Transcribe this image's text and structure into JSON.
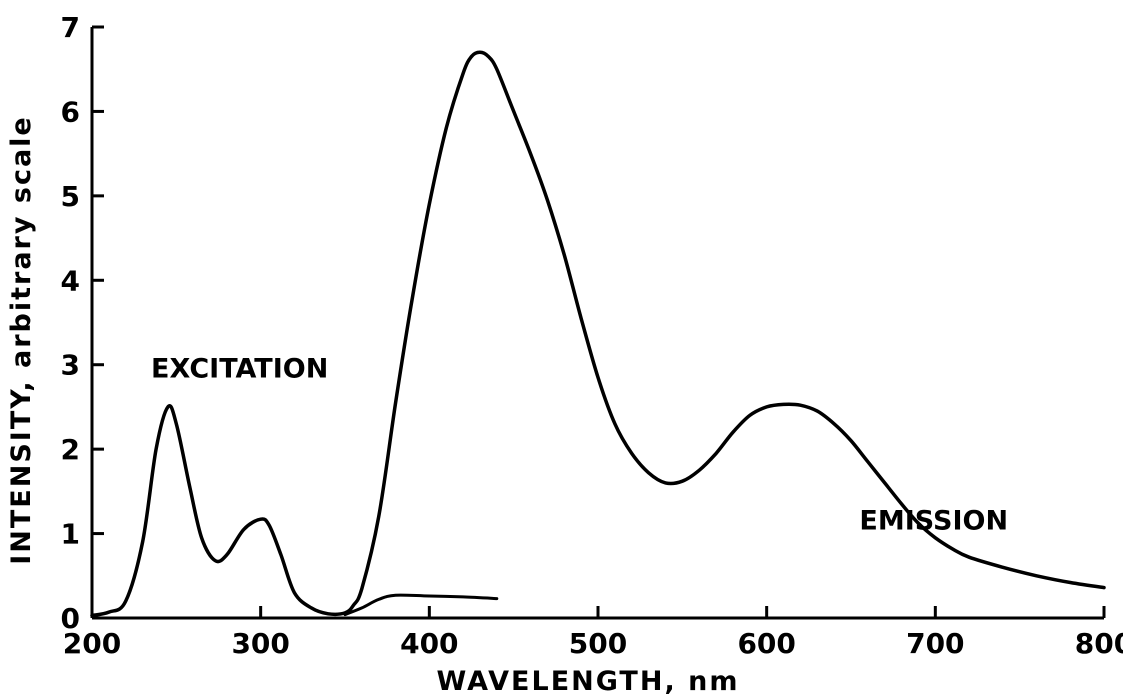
{
  "chart_data": {
    "type": "line",
    "title": "",
    "xlabel": "WAVELENGTH, nm",
    "ylabel": "INTENSITY, arbitrary scale",
    "xlim": [
      200,
      800
    ],
    "ylim": [
      0,
      7
    ],
    "xticks": [
      200,
      300,
      400,
      500,
      600,
      700,
      800
    ],
    "yticks": [
      0,
      1,
      2,
      3,
      4,
      5,
      6,
      7
    ],
    "grid": false,
    "legend": "none",
    "annotations": [
      {
        "text": "EXCITATION",
        "x": 235,
        "y": 2.85
      },
      {
        "text": "EMISSION",
        "x": 655,
        "y": 1.05
      }
    ],
    "series": [
      {
        "x": [
          200,
          210,
          220,
          230,
          238,
          245,
          250,
          258,
          265,
          273,
          280,
          290,
          300,
          305,
          312,
          320,
          330,
          340,
          350,
          355,
          360,
          370,
          380,
          390,
          400,
          410,
          420,
          425,
          430,
          435,
          440,
          450,
          460,
          470,
          480,
          490,
          500,
          510,
          520,
          530,
          540,
          550,
          560,
          570,
          580,
          590,
          600,
          610,
          620,
          630,
          640,
          650,
          660,
          670,
          680,
          690,
          700,
          710,
          720,
          740,
          760,
          780,
          800
        ],
        "y": [
          0.03,
          0.07,
          0.2,
          0.9,
          2.0,
          2.5,
          2.3,
          1.55,
          0.95,
          0.68,
          0.75,
          1.05,
          1.17,
          1.1,
          0.75,
          0.3,
          0.12,
          0.05,
          0.06,
          0.15,
          0.35,
          1.2,
          2.55,
          3.8,
          4.9,
          5.8,
          6.45,
          6.65,
          6.7,
          6.65,
          6.5,
          6.0,
          5.5,
          4.95,
          4.3,
          3.55,
          2.85,
          2.3,
          1.95,
          1.72,
          1.6,
          1.62,
          1.75,
          1.95,
          2.2,
          2.4,
          2.5,
          2.53,
          2.52,
          2.45,
          2.3,
          2.1,
          1.85,
          1.6,
          1.35,
          1.12,
          0.95,
          0.82,
          0.72,
          0.6,
          0.5,
          0.42,
          0.36
        ]
      },
      {
        "x": [
          350,
          360,
          370,
          380,
          400,
          420,
          440
        ],
        "y": [
          0.04,
          0.12,
          0.22,
          0.27,
          0.26,
          0.25,
          0.23
        ]
      }
    ]
  }
}
